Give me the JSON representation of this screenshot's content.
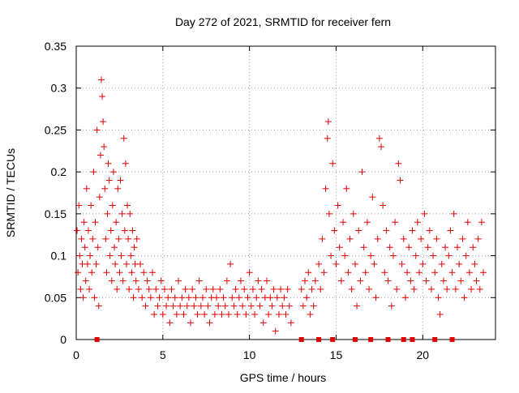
{
  "chart_data": {
    "type": "scatter",
    "title": "Day 272 of 2021, SRMTID for receiver fern",
    "xlabel": "GPS time / hours",
    "ylabel": "SRMTID / TECUs",
    "xlim": [
      0,
      24.2
    ],
    "ylim": [
      0,
      0.35
    ],
    "x_ticks": [
      0,
      5,
      10,
      15,
      20
    ],
    "y_ticks": [
      0,
      0.05,
      0.1,
      0.15,
      0.2,
      0.25,
      0.3,
      0.35
    ],
    "grid": true,
    "marker": "+",
    "color": "#e00000",
    "series": [
      {
        "name": "SRMTID",
        "points": [
          [
            0.05,
            0.13
          ],
          [
            0.1,
            0.08
          ],
          [
            0.15,
            0.16
          ],
          [
            0.2,
            0.1
          ],
          [
            0.25,
            0.06
          ],
          [
            0.3,
            0.12
          ],
          [
            0.35,
            0.09
          ],
          [
            0.4,
            0.05
          ],
          [
            0.45,
            0.14
          ],
          [
            0.5,
            0.11
          ],
          [
            0.55,
            0.07
          ],
          [
            0.6,
            0.18
          ],
          [
            0.65,
            0.09
          ],
          [
            0.7,
            0.13
          ],
          [
            0.75,
            0.06
          ],
          [
            0.8,
            0.1
          ],
          [
            0.85,
            0.16
          ],
          [
            0.9,
            0.08
          ],
          [
            0.95,
            0.12
          ],
          [
            1.0,
            0.2
          ],
          [
            1.05,
            0.05
          ],
          [
            1.1,
            0.14
          ],
          [
            1.15,
            0.09
          ],
          [
            1.2,
            0.25
          ],
          [
            1.25,
            0.11
          ],
          [
            1.3,
            0.04
          ],
          [
            1.35,
            0.17
          ],
          [
            1.4,
            0.22
          ],
          [
            1.45,
            0.31
          ],
          [
            1.5,
            0.29
          ],
          [
            1.55,
            0.26
          ],
          [
            1.6,
            0.23
          ],
          [
            1.65,
            0.18
          ],
          [
            1.7,
            0.12
          ],
          [
            1.75,
            0.08
          ],
          [
            1.8,
            0.15
          ],
          [
            1.85,
            0.21
          ],
          [
            1.9,
            0.19
          ],
          [
            1.95,
            0.1
          ],
          [
            2.0,
            0.13
          ],
          [
            2.05,
            0.07
          ],
          [
            2.1,
            0.16
          ],
          [
            2.15,
            0.2
          ],
          [
            2.2,
            0.11
          ],
          [
            2.25,
            0.09
          ],
          [
            2.3,
            0.14
          ],
          [
            2.35,
            0.06
          ],
          [
            2.4,
            0.18
          ],
          [
            2.45,
            0.12
          ],
          [
            2.5,
            0.08
          ],
          [
            2.55,
            0.19
          ],
          [
            2.6,
            0.1
          ],
          [
            2.65,
            0.15
          ],
          [
            2.7,
            0.07
          ],
          [
            2.75,
            0.24
          ],
          [
            2.8,
            0.13
          ],
          [
            2.85,
            0.21
          ],
          [
            2.9,
            0.09
          ],
          [
            2.95,
            0.16
          ],
          [
            3.0,
            0.12
          ],
          [
            3.05,
            0.06
          ],
          [
            3.1,
            0.15
          ],
          [
            3.15,
            0.1
          ],
          [
            3.2,
            0.08
          ],
          [
            3.25,
            0.13
          ],
          [
            3.3,
            0.05
          ],
          [
            3.35,
            0.11
          ],
          [
            3.4,
            0.09
          ],
          [
            3.45,
            0.07
          ],
          [
            3.5,
            0.12
          ],
          [
            3.6,
            0.06
          ],
          [
            3.7,
            0.09
          ],
          [
            3.8,
            0.05
          ],
          [
            3.9,
            0.08
          ],
          [
            4.0,
            0.04
          ],
          [
            4.1,
            0.07
          ],
          [
            4.2,
            0.06
          ],
          [
            4.3,
            0.05
          ],
          [
            4.4,
            0.08
          ],
          [
            4.5,
            0.03
          ],
          [
            4.6,
            0.06
          ],
          [
            4.7,
            0.04
          ],
          [
            4.8,
            0.05
          ],
          [
            4.9,
            0.07
          ],
          [
            5.0,
            0.03
          ],
          [
            5.1,
            0.06
          ],
          [
            5.2,
            0.04
          ],
          [
            5.3,
            0.05
          ],
          [
            5.4,
            0.02
          ],
          [
            5.5,
            0.06
          ],
          [
            5.6,
            0.04
          ],
          [
            5.7,
            0.05
          ],
          [
            5.8,
            0.03
          ],
          [
            5.9,
            0.07
          ],
          [
            6.0,
            0.04
          ],
          [
            6.1,
            0.05
          ],
          [
            6.2,
            0.03
          ],
          [
            6.3,
            0.06
          ],
          [
            6.4,
            0.04
          ],
          [
            6.5,
            0.05
          ],
          [
            6.6,
            0.02
          ],
          [
            6.7,
            0.06
          ],
          [
            6.8,
            0.04
          ],
          [
            6.9,
            0.05
          ],
          [
            7.0,
            0.03
          ],
          [
            7.1,
            0.07
          ],
          [
            7.2,
            0.04
          ],
          [
            7.3,
            0.05
          ],
          [
            7.4,
            0.03
          ],
          [
            7.5,
            0.06
          ],
          [
            7.6,
            0.04
          ],
          [
            7.7,
            0.02
          ],
          [
            7.8,
            0.05
          ],
          [
            7.9,
            0.06
          ],
          [
            8.0,
            0.03
          ],
          [
            8.1,
            0.05
          ],
          [
            8.2,
            0.04
          ],
          [
            8.3,
            0.06
          ],
          [
            8.4,
            0.03
          ],
          [
            8.5,
            0.05
          ],
          [
            8.6,
            0.04
          ],
          [
            8.7,
            0.07
          ],
          [
            8.8,
            0.03
          ],
          [
            8.9,
            0.09
          ],
          [
            9.0,
            0.05
          ],
          [
            9.1,
            0.04
          ],
          [
            9.2,
            0.06
          ],
          [
            9.3,
            0.03
          ],
          [
            9.4,
            0.05
          ],
          [
            9.5,
            0.07
          ],
          [
            9.6,
            0.04
          ],
          [
            9.7,
            0.06
          ],
          [
            9.8,
            0.03
          ],
          [
            9.9,
            0.05
          ],
          [
            10.0,
            0.08
          ],
          [
            10.1,
            0.04
          ],
          [
            10.2,
            0.06
          ],
          [
            10.3,
            0.03
          ],
          [
            10.4,
            0.05
          ],
          [
            10.5,
            0.07
          ],
          [
            10.6,
            0.04
          ],
          [
            10.7,
            0.06
          ],
          [
            10.8,
            0.02
          ],
          [
            10.9,
            0.05
          ],
          [
            11.0,
            0.07
          ],
          [
            11.1,
            0.03
          ],
          [
            11.2,
            0.05
          ],
          [
            11.3,
            0.04
          ],
          [
            11.4,
            0.06
          ],
          [
            11.5,
            0.01
          ],
          [
            11.6,
            0.05
          ],
          [
            11.7,
            0.03
          ],
          [
            11.8,
            0.06
          ],
          [
            11.9,
            0.04
          ],
          [
            12.0,
            0.05
          ],
          [
            12.1,
            0.03
          ],
          [
            12.2,
            0.06
          ],
          [
            12.3,
            0.04
          ],
          [
            12.4,
            0.02
          ],
          [
            13.0,
            0.06
          ],
          [
            13.1,
            0.04
          ],
          [
            13.2,
            0.07
          ],
          [
            13.3,
            0.05
          ],
          [
            13.4,
            0.08
          ],
          [
            13.5,
            0.03
          ],
          [
            13.6,
            0.06
          ],
          [
            13.7,
            0.04
          ],
          [
            13.8,
            0.07
          ],
          [
            14.0,
            0.09
          ],
          [
            14.1,
            0.06
          ],
          [
            14.2,
            0.12
          ],
          [
            14.3,
            0.08
          ],
          [
            14.4,
            0.18
          ],
          [
            14.5,
            0.24
          ],
          [
            14.55,
            0.26
          ],
          [
            14.6,
            0.15
          ],
          [
            14.7,
            0.1
          ],
          [
            14.8,
            0.21
          ],
          [
            14.9,
            0.13
          ],
          [
            15.0,
            0.09
          ],
          [
            15.1,
            0.16
          ],
          [
            15.2,
            0.11
          ],
          [
            15.3,
            0.07
          ],
          [
            15.4,
            0.14
          ],
          [
            15.5,
            0.1
          ],
          [
            15.6,
            0.18
          ],
          [
            15.7,
            0.08
          ],
          [
            15.8,
            0.12
          ],
          [
            15.9,
            0.06
          ],
          [
            16.0,
            0.15
          ],
          [
            16.1,
            0.09
          ],
          [
            16.2,
            0.04
          ],
          [
            16.3,
            0.13
          ],
          [
            16.4,
            0.07
          ],
          [
            16.5,
            0.2
          ],
          [
            16.6,
            0.11
          ],
          [
            16.7,
            0.08
          ],
          [
            16.8,
            0.14
          ],
          [
            16.9,
            0.06
          ],
          [
            17.0,
            0.1
          ],
          [
            17.1,
            0.17
          ],
          [
            17.2,
            0.09
          ],
          [
            17.3,
            0.05
          ],
          [
            17.4,
            0.12
          ],
          [
            17.5,
            0.24
          ],
          [
            17.6,
            0.23
          ],
          [
            17.7,
            0.16
          ],
          [
            17.8,
            0.08
          ],
          [
            17.9,
            0.13
          ],
          [
            18.0,
            0.07
          ],
          [
            18.1,
            0.11
          ],
          [
            18.2,
            0.04
          ],
          [
            18.3,
            0.1
          ],
          [
            18.4,
            0.14
          ],
          [
            18.5,
            0.06
          ],
          [
            18.6,
            0.21
          ],
          [
            18.7,
            0.19
          ],
          [
            18.8,
            0.09
          ],
          [
            18.9,
            0.12
          ],
          [
            19.0,
            0.05
          ],
          [
            19.1,
            0.08
          ],
          [
            19.2,
            0.11
          ],
          [
            19.3,
            0.07
          ],
          [
            19.4,
            0.13
          ],
          [
            19.5,
            0.06
          ],
          [
            19.6,
            0.1
          ],
          [
            19.7,
            0.14
          ],
          [
            19.8,
            0.08
          ],
          [
            19.9,
            0.12
          ],
          [
            20.0,
            0.09
          ],
          [
            20.1,
            0.15
          ],
          [
            20.2,
            0.07
          ],
          [
            20.3,
            0.11
          ],
          [
            20.4,
            0.13
          ],
          [
            20.5,
            0.06
          ],
          [
            20.6,
            0.1
          ],
          [
            20.7,
            0.08
          ],
          [
            20.8,
            0.12
          ],
          [
            20.9,
            0.05
          ],
          [
            21.0,
            0.03
          ],
          [
            21.1,
            0.09
          ],
          [
            21.2,
            0.07
          ],
          [
            21.3,
            0.11
          ],
          [
            21.4,
            0.06
          ],
          [
            21.5,
            0.1
          ],
          [
            21.6,
            0.13
          ],
          [
            21.7,
            0.08
          ],
          [
            21.8,
            0.15
          ],
          [
            21.9,
            0.06
          ],
          [
            22.0,
            0.11
          ],
          [
            22.1,
            0.09
          ],
          [
            22.2,
            0.07
          ],
          [
            22.3,
            0.12
          ],
          [
            22.4,
            0.05
          ],
          [
            22.5,
            0.1
          ],
          [
            22.6,
            0.14
          ],
          [
            22.7,
            0.08
          ],
          [
            22.8,
            0.06
          ],
          [
            22.9,
            0.11
          ],
          [
            23.0,
            0.09
          ],
          [
            23.1,
            0.07
          ],
          [
            23.2,
            0.12
          ],
          [
            23.3,
            0.06
          ],
          [
            23.4,
            0.14
          ],
          [
            23.5,
            0.08
          ]
        ]
      }
    ],
    "zero_markers": [
      1.2,
      13.0,
      14.0,
      14.8,
      16.1,
      17.0,
      18.0,
      18.9,
      19.4,
      20.7,
      21.7
    ]
  }
}
